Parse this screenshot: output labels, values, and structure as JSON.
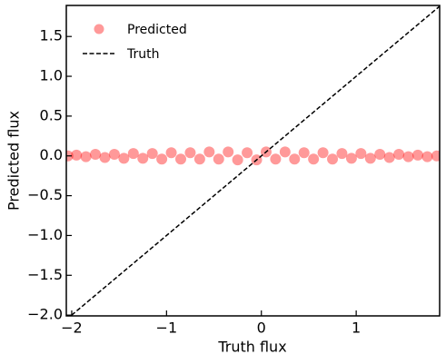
{
  "chart_data": {
    "type": "scatter",
    "xlabel": "Truth flux",
    "ylabel": "Predicted flux",
    "xlim": [
      -2.057,
      1.88
    ],
    "ylim": [
      -2.01,
      1.89
    ],
    "xticks": [
      {
        "value": -2,
        "label": "−2"
      },
      {
        "value": -1,
        "label": "−1"
      },
      0,
      1
    ],
    "yticks": [
      {
        "value": -2,
        "label": "−2.0"
      },
      {
        "value": -1.5,
        "label": "−1.5"
      },
      {
        "value": -1,
        "label": "−1.0"
      },
      {
        "value": -0.5,
        "label": "−0.5"
      },
      {
        "value": 0,
        "label": "0.0"
      },
      0.5,
      {
        "value": 1,
        "label": "1.0"
      },
      1.5
    ],
    "legend": "upper left",
    "series": [
      {
        "name": "Predicted",
        "kind": "points",
        "color": "#ff0000",
        "x": [
          -2.04,
          -1.95,
          -1.85,
          -1.75,
          -1.65,
          -1.55,
          -1.45,
          -1.35,
          -1.25,
          -1.15,
          -1.05,
          -0.95,
          -0.85,
          -0.75,
          -0.65,
          -0.55,
          -0.45,
          -0.35,
          -0.25,
          -0.15,
          -0.05,
          0.05,
          0.15,
          0.25,
          0.35,
          0.45,
          0.55,
          0.65,
          0.75,
          0.85,
          0.95,
          1.05,
          1.15,
          1.25,
          1.35,
          1.45,
          1.55,
          1.65,
          1.75,
          1.85
        ],
        "y": [
          0.0,
          0.01,
          -0.01,
          0.02,
          -0.02,
          0.02,
          -0.03,
          0.03,
          -0.03,
          0.03,
          -0.04,
          0.04,
          -0.04,
          0.04,
          -0.04,
          0.05,
          -0.04,
          0.05,
          -0.05,
          0.04,
          -0.05,
          0.05,
          -0.04,
          0.05,
          -0.04,
          0.04,
          -0.04,
          0.04,
          -0.04,
          0.03,
          -0.03,
          0.03,
          -0.03,
          0.02,
          -0.02,
          0.02,
          -0.01,
          0.01,
          -0.01,
          0.0
        ]
      },
      {
        "name": "Truth",
        "kind": "dashed-line",
        "color": "#000000",
        "x": [
          -2.057,
          1.88
        ],
        "y": [
          -2.057,
          1.88
        ]
      }
    ]
  }
}
